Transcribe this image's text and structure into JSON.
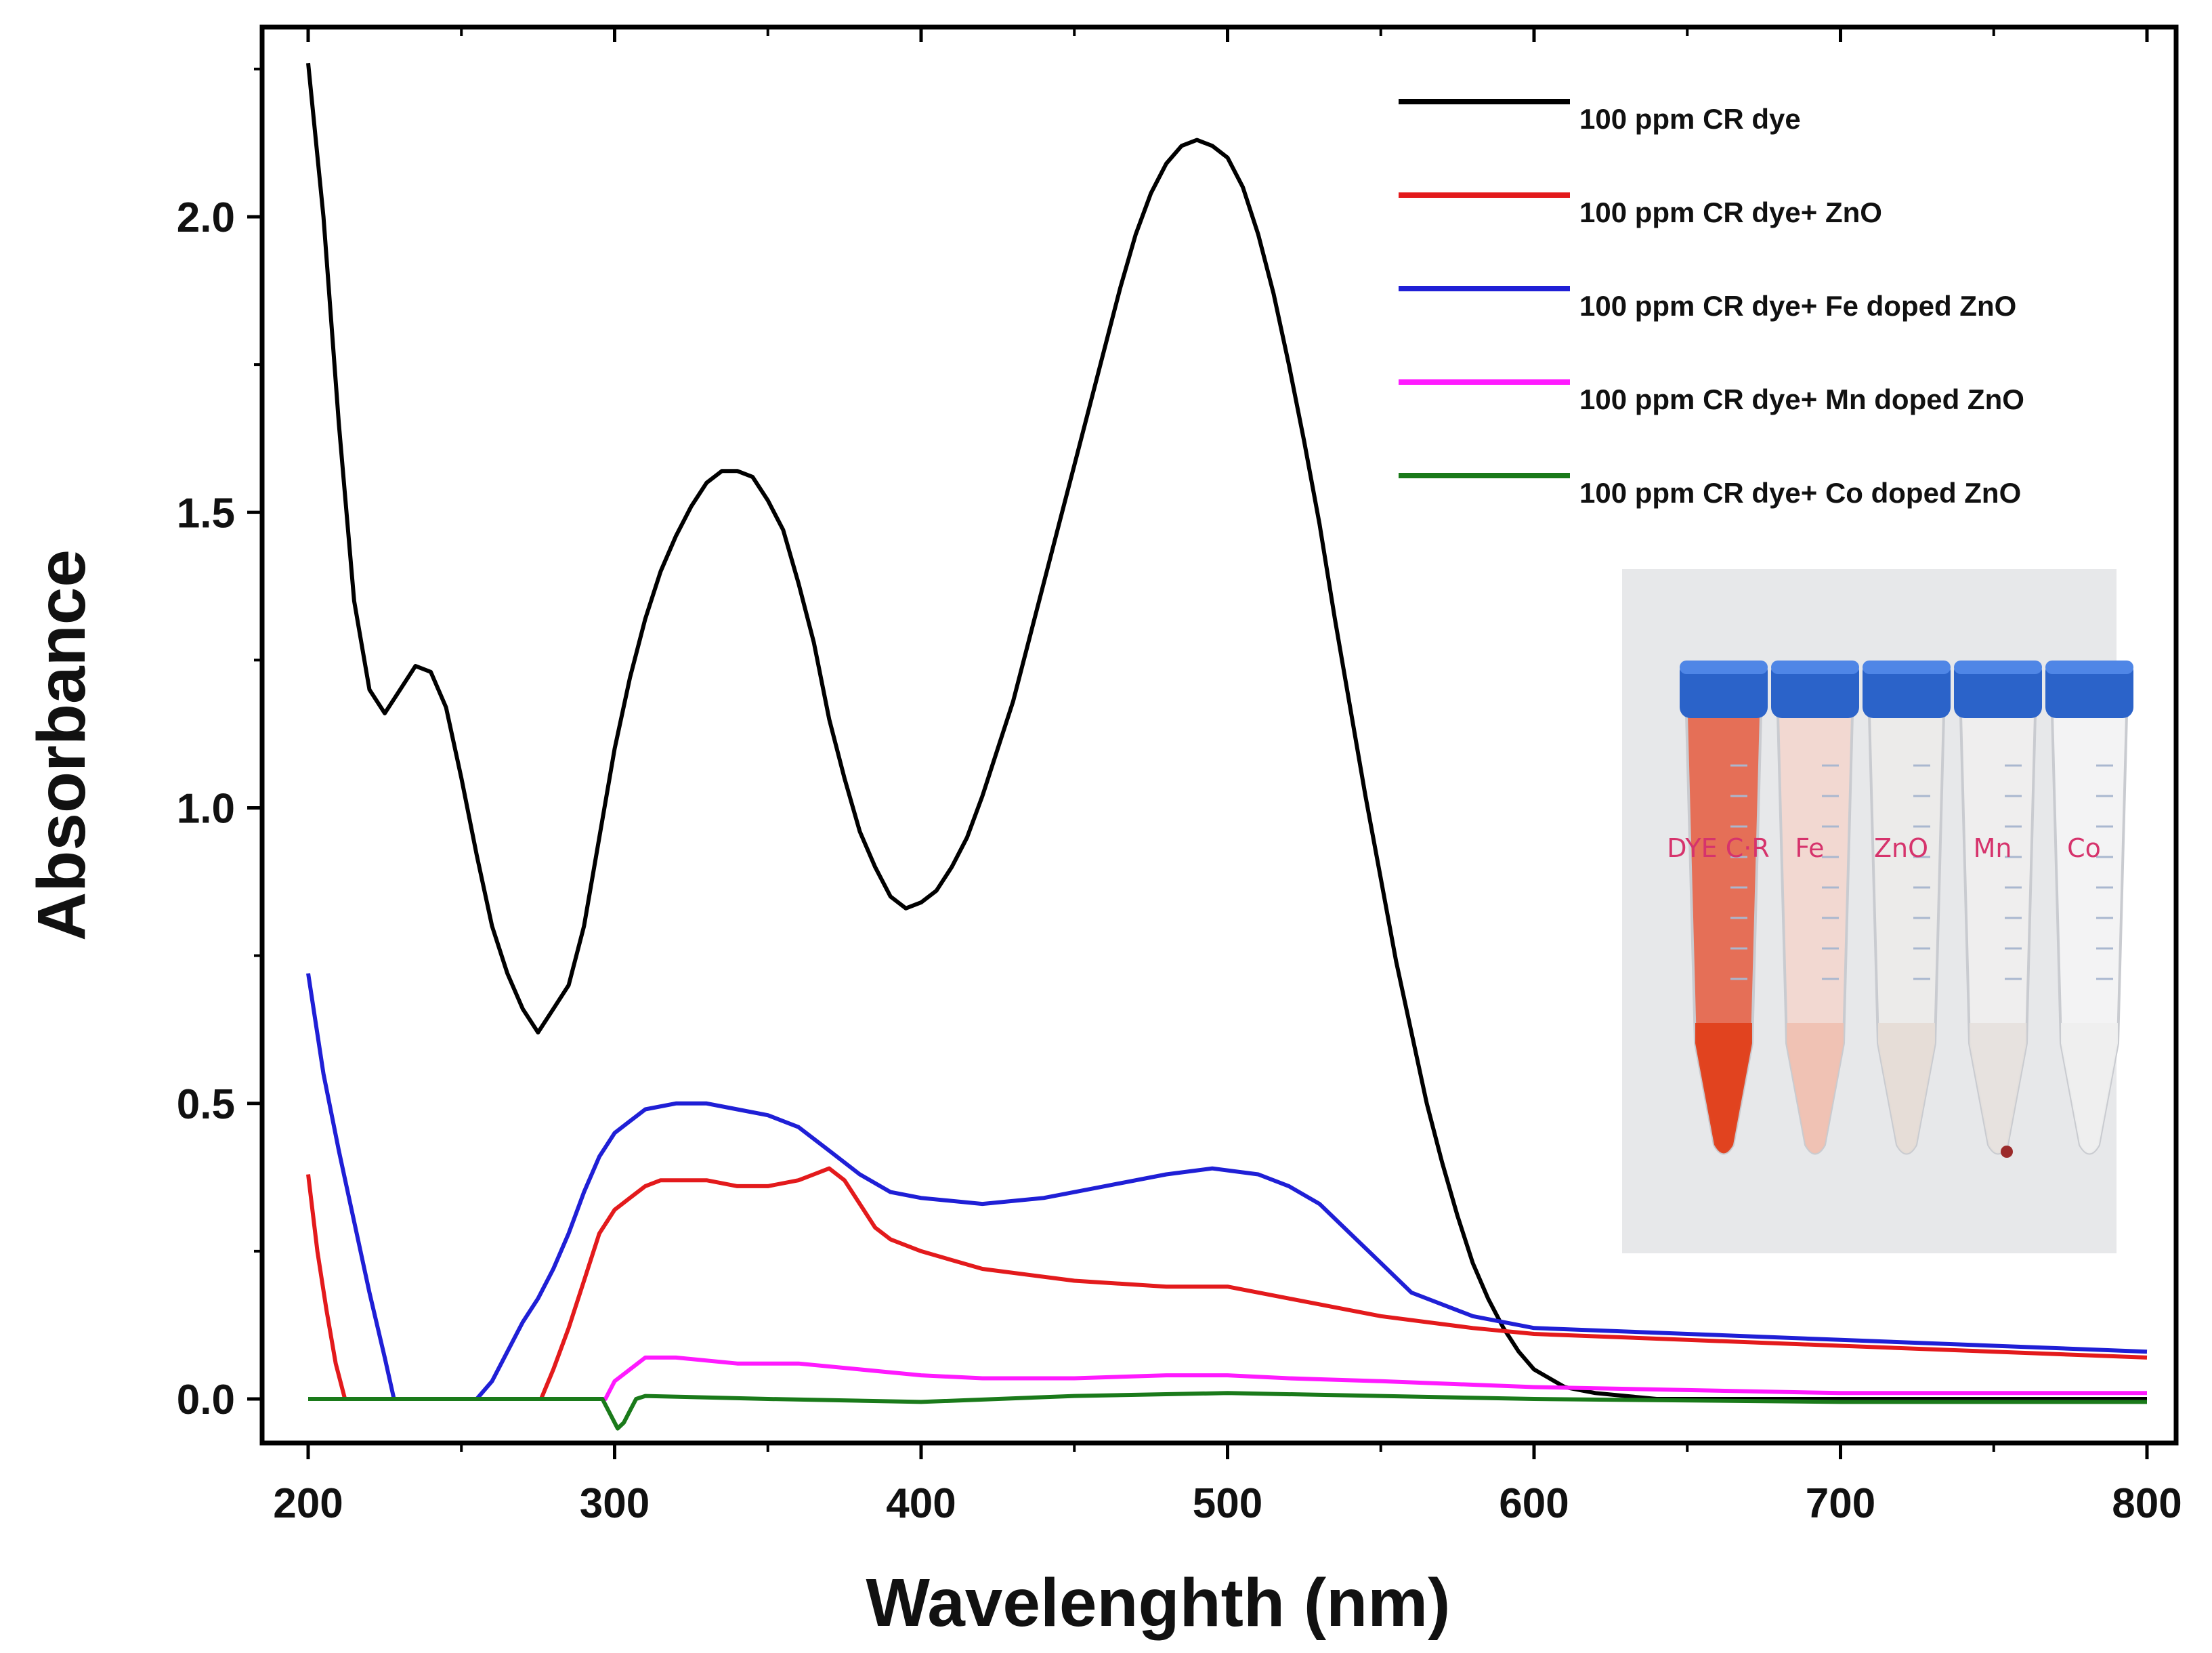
{
  "chart_data": {
    "type": "line",
    "title": "",
    "xlabel": "Wavelenghth (nm)",
    "ylabel": "Absorbance",
    "xlim": [
      190,
      810
    ],
    "ylim": [
      -0.05,
      2.3
    ],
    "xticks": [
      200,
      300,
      400,
      500,
      600,
      700,
      800
    ],
    "yticks": [
      0.0,
      0.5,
      1.0,
      1.5,
      2.0
    ],
    "xtick_labels": [
      "200",
      "300",
      "400",
      "500",
      "600",
      "700",
      "800"
    ],
    "ytick_labels": [
      "0.0",
      "0.5",
      "1.0",
      "1.5",
      "2.0"
    ],
    "legend_position": "top-right",
    "series": [
      {
        "name": "100 ppm CR dye",
        "color": "#000000",
        "points": [
          [
            200,
            2.26
          ],
          [
            205,
            2.0
          ],
          [
            210,
            1.65
          ],
          [
            215,
            1.35
          ],
          [
            220,
            1.2
          ],
          [
            225,
            1.16
          ],
          [
            230,
            1.2
          ],
          [
            235,
            1.24
          ],
          [
            240,
            1.23
          ],
          [
            245,
            1.17
          ],
          [
            250,
            1.05
          ],
          [
            255,
            0.92
          ],
          [
            260,
            0.8
          ],
          [
            265,
            0.72
          ],
          [
            270,
            0.66
          ],
          [
            275,
            0.62
          ],
          [
            280,
            0.66
          ],
          [
            285,
            0.7
          ],
          [
            290,
            0.8
          ],
          [
            295,
            0.95
          ],
          [
            300,
            1.1
          ],
          [
            305,
            1.22
          ],
          [
            310,
            1.32
          ],
          [
            315,
            1.4
          ],
          [
            320,
            1.46
          ],
          [
            325,
            1.51
          ],
          [
            330,
            1.55
          ],
          [
            335,
            1.57
          ],
          [
            340,
            1.57
          ],
          [
            345,
            1.56
          ],
          [
            350,
            1.52
          ],
          [
            355,
            1.47
          ],
          [
            360,
            1.38
          ],
          [
            365,
            1.28
          ],
          [
            370,
            1.15
          ],
          [
            375,
            1.05
          ],
          [
            380,
            0.96
          ],
          [
            385,
            0.9
          ],
          [
            390,
            0.85
          ],
          [
            395,
            0.83
          ],
          [
            400,
            0.84
          ],
          [
            405,
            0.86
          ],
          [
            410,
            0.9
          ],
          [
            415,
            0.95
          ],
          [
            420,
            1.02
          ],
          [
            425,
            1.1
          ],
          [
            430,
            1.18
          ],
          [
            435,
            1.28
          ],
          [
            440,
            1.38
          ],
          [
            445,
            1.48
          ],
          [
            450,
            1.58
          ],
          [
            455,
            1.68
          ],
          [
            460,
            1.78
          ],
          [
            465,
            1.88
          ],
          [
            470,
            1.97
          ],
          [
            475,
            2.04
          ],
          [
            480,
            2.09
          ],
          [
            485,
            2.12
          ],
          [
            490,
            2.13
          ],
          [
            495,
            2.12
          ],
          [
            500,
            2.1
          ],
          [
            505,
            2.05
          ],
          [
            510,
            1.97
          ],
          [
            515,
            1.87
          ],
          [
            520,
            1.75
          ],
          [
            525,
            1.62
          ],
          [
            530,
            1.48
          ],
          [
            535,
            1.32
          ],
          [
            540,
            1.17
          ],
          [
            545,
            1.02
          ],
          [
            550,
            0.88
          ],
          [
            555,
            0.74
          ],
          [
            560,
            0.62
          ],
          [
            565,
            0.5
          ],
          [
            570,
            0.4
          ],
          [
            575,
            0.31
          ],
          [
            580,
            0.23
          ],
          [
            585,
            0.17
          ],
          [
            590,
            0.12
          ],
          [
            595,
            0.08
          ],
          [
            600,
            0.05
          ],
          [
            610,
            0.02
          ],
          [
            620,
            0.01
          ],
          [
            640,
            0.0
          ],
          [
            700,
            0.0
          ],
          [
            800,
            0.0
          ]
        ]
      },
      {
        "name": "100 ppm CR dye+ ZnO",
        "color": "#e31a1c",
        "points": [
          [
            200,
            0.38
          ],
          [
            203,
            0.25
          ],
          [
            206,
            0.15
          ],
          [
            209,
            0.06
          ],
          [
            212,
            0.0
          ],
          [
            276,
            0.0
          ],
          [
            280,
            0.05
          ],
          [
            285,
            0.12
          ],
          [
            290,
            0.2
          ],
          [
            295,
            0.28
          ],
          [
            300,
            0.32
          ],
          [
            305,
            0.34
          ],
          [
            310,
            0.36
          ],
          [
            315,
            0.37
          ],
          [
            330,
            0.37
          ],
          [
            340,
            0.36
          ],
          [
            350,
            0.36
          ],
          [
            360,
            0.37
          ],
          [
            365,
            0.38
          ],
          [
            370,
            0.39
          ],
          [
            375,
            0.37
          ],
          [
            380,
            0.33
          ],
          [
            385,
            0.29
          ],
          [
            390,
            0.27
          ],
          [
            400,
            0.25
          ],
          [
            420,
            0.22
          ],
          [
            450,
            0.2
          ],
          [
            480,
            0.19
          ],
          [
            500,
            0.19
          ],
          [
            520,
            0.17
          ],
          [
            550,
            0.14
          ],
          [
            580,
            0.12
          ],
          [
            600,
            0.11
          ],
          [
            650,
            0.1
          ],
          [
            700,
            0.09
          ],
          [
            750,
            0.08
          ],
          [
            800,
            0.07
          ]
        ]
      },
      {
        "name": "100 ppm CR dye+ Fe doped ZnO",
        "color": "#1f1fd6",
        "points": [
          [
            200,
            0.72
          ],
          [
            205,
            0.55
          ],
          [
            210,
            0.42
          ],
          [
            215,
            0.3
          ],
          [
            220,
            0.18
          ],
          [
            225,
            0.07
          ],
          [
            228,
            0.0
          ],
          [
            255,
            0.0
          ],
          [
            260,
            0.03
          ],
          [
            265,
            0.08
          ],
          [
            270,
            0.13
          ],
          [
            275,
            0.17
          ],
          [
            280,
            0.22
          ],
          [
            285,
            0.28
          ],
          [
            290,
            0.35
          ],
          [
            295,
            0.41
          ],
          [
            300,
            0.45
          ],
          [
            305,
            0.47
          ],
          [
            310,
            0.49
          ],
          [
            320,
            0.5
          ],
          [
            330,
            0.5
          ],
          [
            340,
            0.49
          ],
          [
            350,
            0.48
          ],
          [
            360,
            0.46
          ],
          [
            370,
            0.42
          ],
          [
            380,
            0.38
          ],
          [
            390,
            0.35
          ],
          [
            400,
            0.34
          ],
          [
            420,
            0.33
          ],
          [
            440,
            0.34
          ],
          [
            460,
            0.36
          ],
          [
            480,
            0.38
          ],
          [
            495,
            0.39
          ],
          [
            510,
            0.38
          ],
          [
            520,
            0.36
          ],
          [
            530,
            0.33
          ],
          [
            540,
            0.28
          ],
          [
            550,
            0.23
          ],
          [
            560,
            0.18
          ],
          [
            580,
            0.14
          ],
          [
            600,
            0.12
          ],
          [
            650,
            0.11
          ],
          [
            700,
            0.1
          ],
          [
            750,
            0.09
          ],
          [
            800,
            0.08
          ]
        ]
      },
      {
        "name": "100 ppm CR dye+ Mn doped ZnO",
        "color": "#ff1aff",
        "points": [
          [
            200,
            0.0
          ],
          [
            297,
            0.0
          ],
          [
            300,
            0.03
          ],
          [
            305,
            0.05
          ],
          [
            310,
            0.07
          ],
          [
            320,
            0.07
          ],
          [
            340,
            0.06
          ],
          [
            360,
            0.06
          ],
          [
            380,
            0.05
          ],
          [
            400,
            0.04
          ],
          [
            420,
            0.035
          ],
          [
            450,
            0.035
          ],
          [
            480,
            0.04
          ],
          [
            500,
            0.04
          ],
          [
            520,
            0.035
          ],
          [
            550,
            0.03
          ],
          [
            600,
            0.02
          ],
          [
            650,
            0.015
          ],
          [
            700,
            0.01
          ],
          [
            750,
            0.01
          ],
          [
            800,
            0.01
          ]
        ]
      },
      {
        "name": "100 ppm CR dye+ Co doped ZnO",
        "color": "#1a7a1a",
        "points": [
          [
            200,
            0.0
          ],
          [
            296,
            0.0
          ],
          [
            299,
            -0.03
          ],
          [
            301,
            -0.05
          ],
          [
            303,
            -0.04
          ],
          [
            305,
            -0.02
          ],
          [
            307,
            0.0
          ],
          [
            310,
            0.005
          ],
          [
            350,
            0.0
          ],
          [
            400,
            -0.005
          ],
          [
            450,
            0.005
          ],
          [
            500,
            0.01
          ],
          [
            550,
            0.005
          ],
          [
            600,
            0.0
          ],
          [
            700,
            -0.005
          ],
          [
            800,
            -0.005
          ]
        ]
      }
    ]
  },
  "inset_photo": {
    "tube_labels": [
      "DYE C·R",
      "Fe",
      "ZnO",
      "Mn",
      "Co"
    ]
  }
}
